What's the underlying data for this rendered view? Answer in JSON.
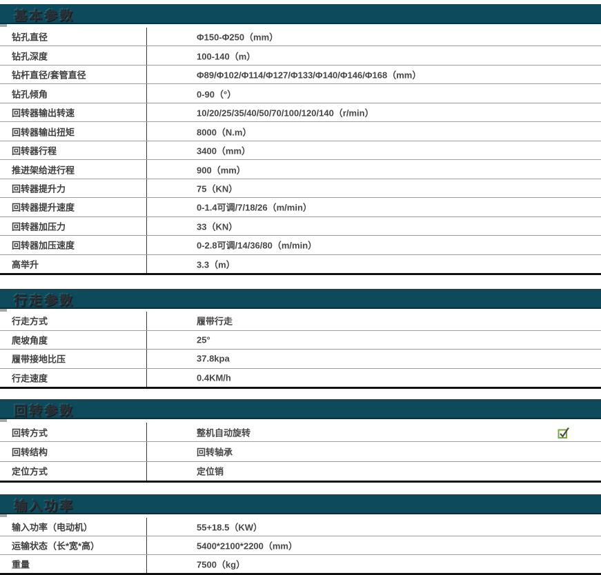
{
  "colors": {
    "header_bg": "#0d4b5c",
    "header_text": "#2b3338",
    "row_line": "#9e9e9e",
    "column_divider": "#3a3a3a",
    "thick_border": "#0f0f0f",
    "notch_gray": "#a8a8a8",
    "checkbox_green": "#7aa83d",
    "checkbox_check": "#4a4a4a",
    "body_text": "#3f3f3f"
  },
  "icons": {
    "checkbox": "checked-checkbox-icon"
  },
  "sections": [
    {
      "title": "基本参数",
      "rows": [
        {
          "label": "钻孔直径",
          "value": "Φ150-Φ250（mm）"
        },
        {
          "label": "钻孔深度",
          "value": "100-140（m）"
        },
        {
          "label": "钻杆直径/套管直径",
          "value": "Φ89/Φ102/Φ114/Φ127/Φ133/Φ140/Φ146/Φ168（mm）"
        },
        {
          "label": "钻孔倾角",
          "value": "0-90（°）"
        },
        {
          "label": "回转器输出转速",
          "value": "10/20/25/35/40/50/70/100/120/140（r/min）"
        },
        {
          "label": "回转器输出扭矩",
          "value": "8000（N.m）"
        },
        {
          "label": "回转器行程",
          "value": "3400（mm）"
        },
        {
          "label": "推进架给进行程",
          "value": "900（mm）"
        },
        {
          "label": "回转器提升力",
          "value": "75（KN）"
        },
        {
          "label": "回转器提升速度",
          "value": "0-1.4可调/7/18/26（m/min）"
        },
        {
          "label": "回转器加压力",
          "value": "33（KN）"
        },
        {
          "label": "回转器加压速度",
          "value": "0-2.8可调/14/36/80（m/min）"
        },
        {
          "label": "高举升",
          "value": "3.3（m）"
        }
      ]
    },
    {
      "title": "行走参数",
      "rows": [
        {
          "label": "行走方式",
          "value": "履带行走"
        },
        {
          "label": "爬坡角度",
          "value": "25°"
        },
        {
          "label": "履带接地比压",
          "value": "37.8kpa"
        },
        {
          "label": "行走速度",
          "value": "0.4KM/h"
        }
      ]
    },
    {
      "title": "回转参数",
      "rows": [
        {
          "label": "回转方式",
          "value": "整机自动旋转",
          "checkbox": true
        },
        {
          "label": "回转结构",
          "value": "回转轴承"
        },
        {
          "label": "定位方式",
          "value": "定位销"
        }
      ]
    },
    {
      "title": "输入功率",
      "rows": [
        {
          "label": "输入功率（电动机）",
          "value": "55+18.5（KW）"
        },
        {
          "label": "运输状态（长*宽*高）",
          "value": "5400*2100*2200（mm）"
        },
        {
          "label": "重量",
          "value": "7500（kg）"
        }
      ]
    }
  ]
}
